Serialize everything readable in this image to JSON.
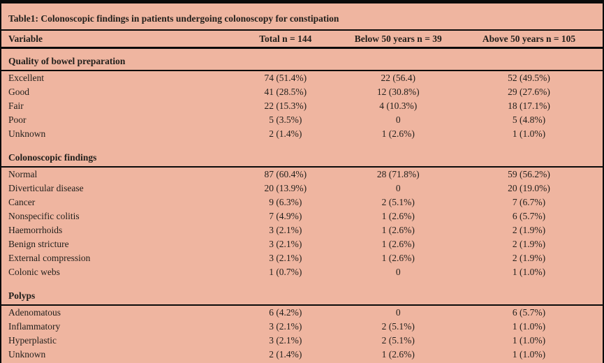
{
  "table": {
    "title": "Table1: Colonoscopic findings in patients undergoing colonoscopy for constipation",
    "columns": [
      "Variable",
      "Total n = 144",
      "Below 50 years n = 39",
      "Above 50 years n = 105"
    ],
    "sections": [
      {
        "header": "Quality of bowel preparation",
        "rows": [
          [
            "Excellent",
            "74 (51.4%)",
            "22 (56.4)",
            "52 (49.5%)"
          ],
          [
            "Good",
            "41 (28.5%)",
            "12 (30.8%)",
            "29 (27.6%)"
          ],
          [
            "Fair",
            "22 (15.3%)",
            "4 (10.3%)",
            "18 (17.1%)"
          ],
          [
            "Poor",
            "5 (3.5%)",
            "0",
            "5 (4.8%)"
          ],
          [
            "Unknown",
            "2 (1.4%)",
            "1 (2.6%)",
            "1 (1.0%)"
          ]
        ]
      },
      {
        "header": "Colonoscopic findings",
        "rows": [
          [
            "Normal",
            "87 (60.4%)",
            "28 (71.8%)",
            "59 (56.2%)"
          ],
          [
            "Diverticular disease",
            "20 (13.9%)",
            "0",
            "20 (19.0%)"
          ],
          [
            "Cancer",
            "9 (6.3%)",
            "2 (5.1%)",
            "7 (6.7%)"
          ],
          [
            "Nonspecific colitis",
            "7 (4.9%)",
            "1 (2.6%)",
            "6 (5.7%)"
          ],
          [
            "Haemorrhoids",
            "3 (2.1%)",
            "1 (2.6%)",
            "2 (1.9%)"
          ],
          [
            "Benign stricture",
            "3 (2.1%)",
            "1 (2.6%)",
            "2 (1.9%)"
          ],
          [
            "External compression",
            "3 (2.1%)",
            "1 (2.6%)",
            "2 (1.9%)"
          ],
          [
            "Colonic webs",
            "1 (0.7%)",
            "0",
            "1 (1.0%)"
          ]
        ]
      },
      {
        "header": "Polyps",
        "rows": [
          [
            "Adenomatous",
            "6 (4.2%)",
            "0",
            "6 (5.7%)"
          ],
          [
            "Inflammatory",
            "3 (2.1%)",
            "2 (5.1%)",
            "1 (1.0%)"
          ],
          [
            "Hyperplastic",
            "3 (2.1%)",
            "2 (5.1%)",
            "1 (1.0%)"
          ],
          [
            "Unknown",
            "2 (1.4%)",
            "1 (2.6%)",
            "1 (1.0%)"
          ]
        ]
      }
    ]
  },
  "colors": {
    "background": "#efb5a0",
    "text": "#211f1b",
    "rule": "#0b0b0b"
  }
}
